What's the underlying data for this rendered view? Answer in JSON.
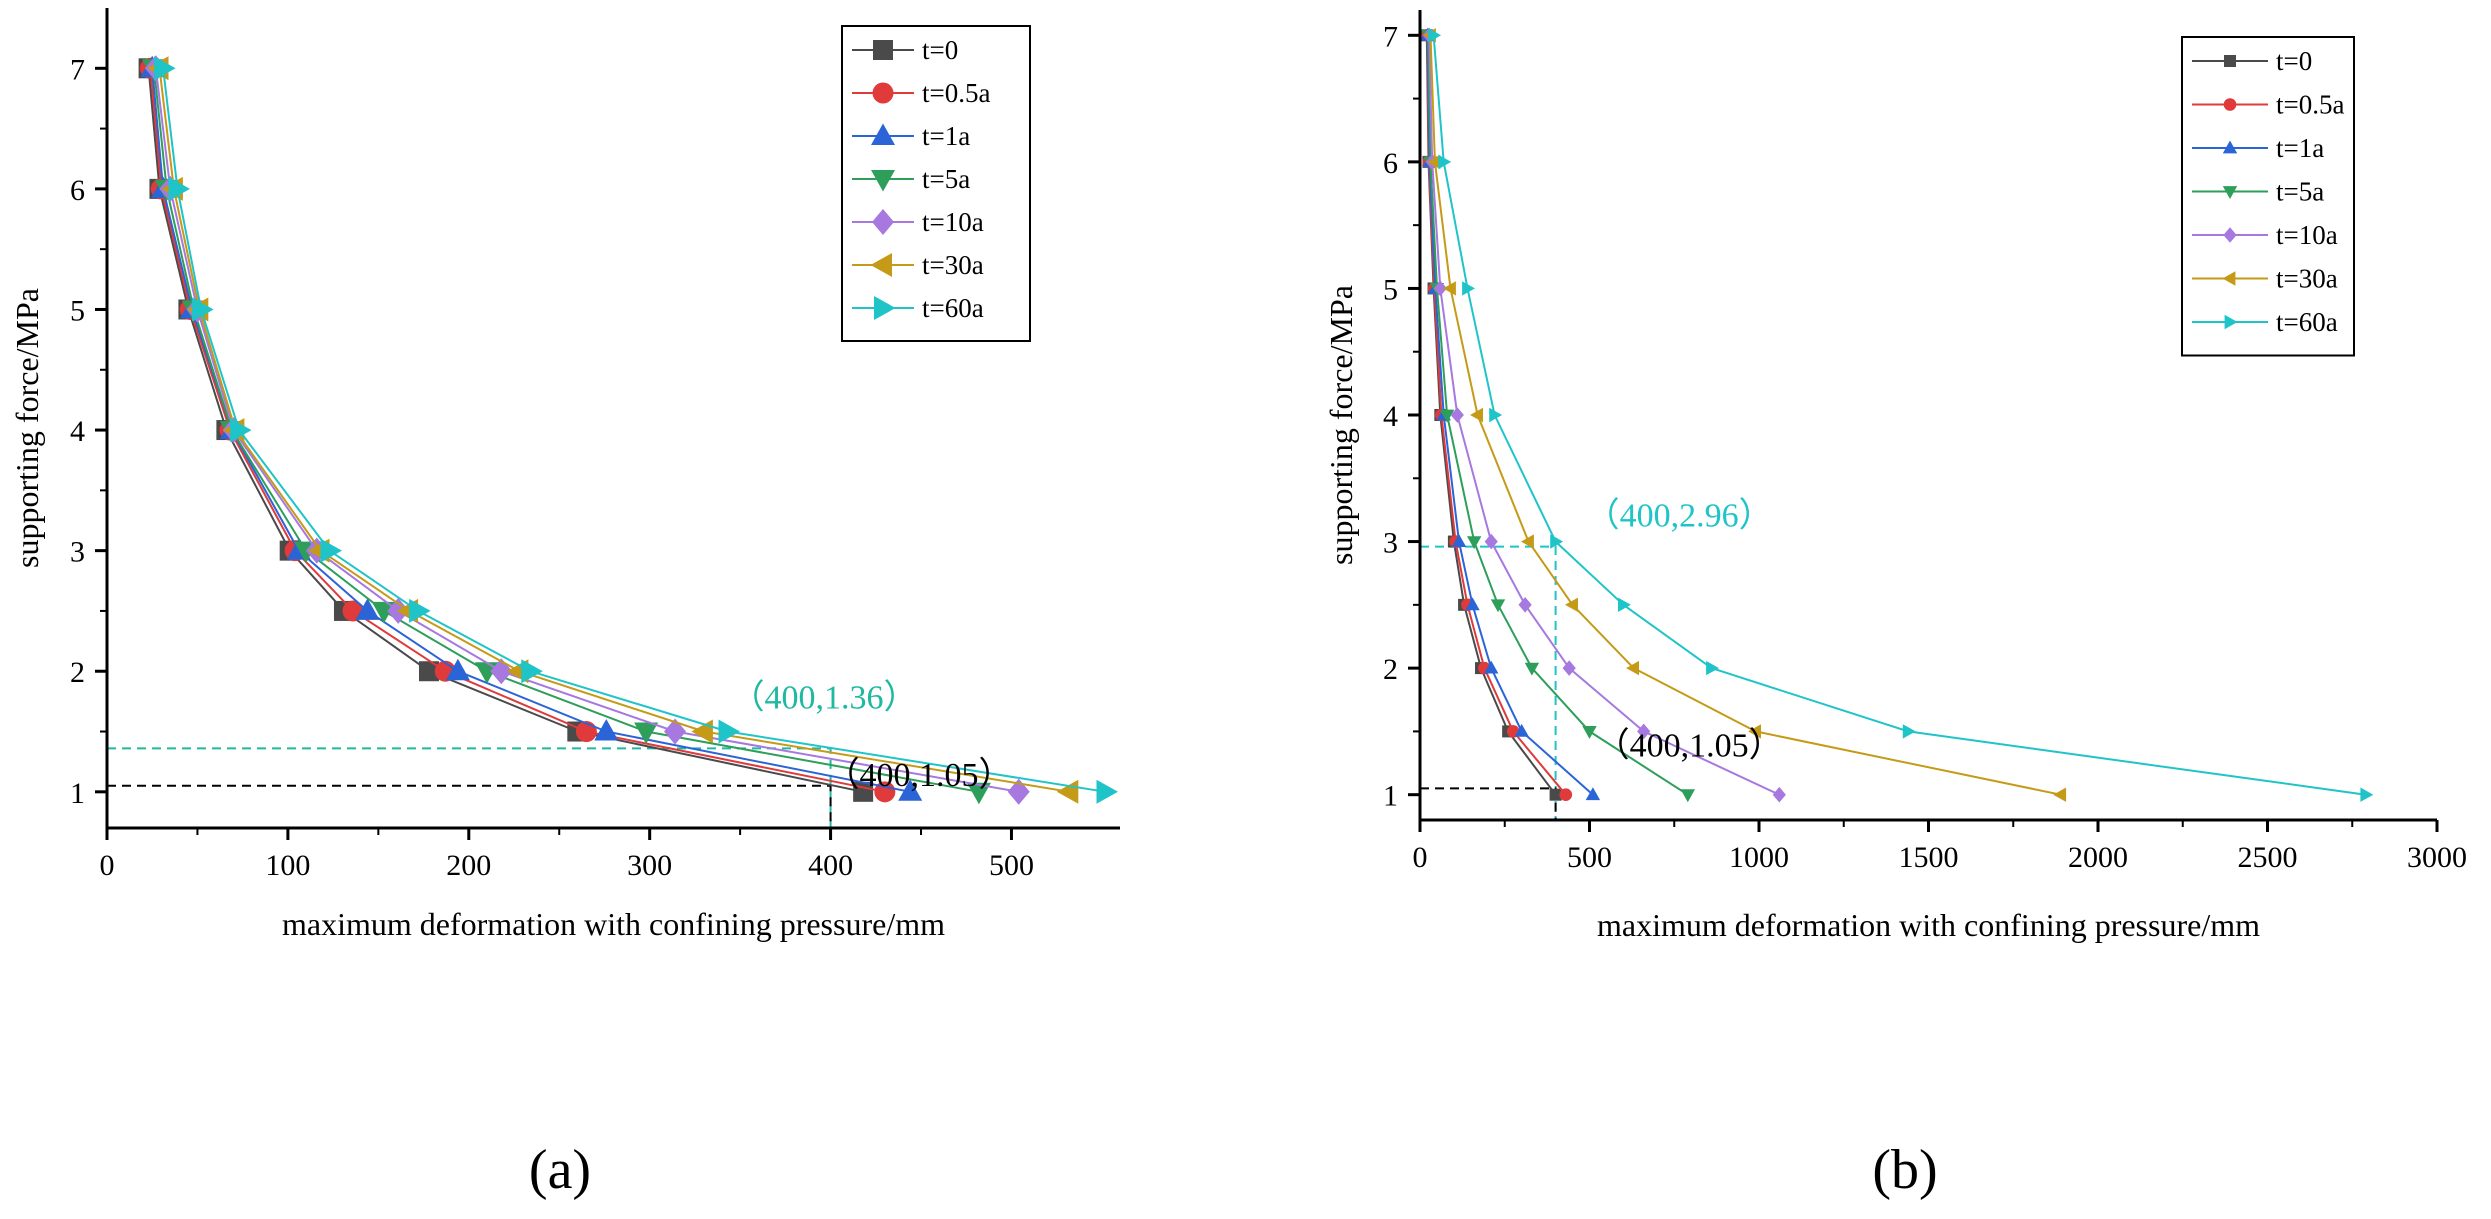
{
  "figure": {
    "panel_labels": [
      "(a)",
      "(b)"
    ]
  },
  "chart_data": [
    {
      "panel": "(a)",
      "type": "line",
      "title": "",
      "xlabel": "maximum deformation with confining pressure/mm",
      "ylabel": "supporting force/MPa",
      "xlim": [
        0,
        560
      ],
      "ylim": [
        0.7,
        7.5
      ],
      "xticks": [
        0,
        100,
        200,
        300,
        400,
        500
      ],
      "yticks": [
        1,
        2,
        3,
        4,
        5,
        6,
        7
      ],
      "grid": false,
      "legend_position": "top-right",
      "series": [
        {
          "name": "t=0",
          "color": "#4a4a4a",
          "marker": "square",
          "x": [
            23,
            29,
            45,
            66,
            101,
            131,
            178,
            260,
            418
          ],
          "y": [
            7,
            6,
            5,
            4,
            3,
            2.5,
            2,
            1.5,
            1
          ]
        },
        {
          "name": "t=0.5a",
          "color": "#e03a3a",
          "marker": "circle",
          "x": [
            24,
            30,
            46,
            68,
            104,
            136,
            187,
            265,
            430
          ],
          "y": [
            7,
            6,
            5,
            4,
            3,
            2.5,
            2,
            1.5,
            1
          ]
        },
        {
          "name": "t=1a",
          "color": "#2a64d6",
          "marker": "triangle-up",
          "x": [
            25,
            31,
            47,
            69,
            106,
            144,
            194,
            276,
            444
          ],
          "y": [
            7,
            6,
            5,
            4,
            3,
            2.5,
            2,
            1.5,
            1
          ]
        },
        {
          "name": "t=5a",
          "color": "#2e9e5b",
          "marker": "triangle-down",
          "x": [
            26,
            33,
            48,
            69,
            110,
            153,
            210,
            298,
            482
          ],
          "y": [
            7,
            6,
            5,
            4,
            3,
            2.5,
            2,
            1.5,
            1
          ]
        },
        {
          "name": "t=10a",
          "color": "#a678e0",
          "marker": "diamond",
          "x": [
            27,
            35,
            50,
            70,
            116,
            161,
            218,
            314,
            504
          ],
          "y": [
            7,
            6,
            5,
            4,
            3,
            2.5,
            2,
            1.5,
            1
          ]
        },
        {
          "name": "t=30a",
          "color": "#c49a16",
          "marker": "triangle-left",
          "x": [
            29,
            37,
            51,
            71,
            118,
            167,
            228,
            330,
            532
          ],
          "y": [
            7,
            6,
            5,
            4,
            3,
            2.5,
            2,
            1.5,
            1
          ]
        },
        {
          "name": "t=60a",
          "color": "#1fc4c9",
          "marker": "triangle-right",
          "x": [
            31,
            39,
            52,
            73,
            123,
            172,
            234,
            343,
            552
          ],
          "y": [
            7,
            6,
            5,
            4,
            3,
            2.5,
            2,
            1.5,
            1
          ]
        }
      ],
      "reference_lines": [
        {
          "x": 400,
          "y": 1.36,
          "color": "#1fb8a0"
        },
        {
          "x": 400,
          "y": 1.05,
          "color": "#000000"
        }
      ],
      "annotations": [
        {
          "text": "（400,1.36）",
          "x": 400,
          "y": 1.36,
          "color": "#1fb8a0"
        },
        {
          "text": "（400,1.05）",
          "x": 400,
          "y": 1.05,
          "color": "#000000"
        }
      ]
    },
    {
      "panel": "(b)",
      "type": "line",
      "title": "",
      "xlabel": "maximum deformation with confining pressure/mm",
      "ylabel": "supporting force/MPa",
      "xlim": [
        0,
        3000
      ],
      "ylim": [
        0.8,
        7.2
      ],
      "xticks": [
        0,
        500,
        1000,
        1500,
        2000,
        2500,
        3000
      ],
      "yticks": [
        1,
        1.5,
        2,
        2.5,
        3,
        3.5,
        4,
        4.5,
        5,
        5.5,
        6,
        6.5,
        7
      ],
      "ytick_labels": [
        "1",
        "",
        "2",
        "",
        "3",
        "",
        "4",
        "",
        "5",
        "",
        "6",
        "",
        "7"
      ],
      "grid": false,
      "legend_position": "top-right",
      "series": [
        {
          "name": "t=0",
          "color": "#4a4a4a",
          "marker": "square",
          "x": [
            20,
            25,
            40,
            60,
            100,
            130,
            180,
            260,
            400
          ],
          "y": [
            7,
            6,
            5,
            4,
            3,
            2.5,
            2,
            1.5,
            1
          ]
        },
        {
          "name": "t=0.5a",
          "color": "#e03a3a",
          "marker": "circle",
          "x": [
            21,
            26,
            42,
            63,
            105,
            140,
            190,
            275,
            430
          ],
          "y": [
            7,
            6,
            5,
            4,
            3,
            2.5,
            2,
            1.5,
            1
          ]
        },
        {
          "name": "t=1a",
          "color": "#2a64d6",
          "marker": "triangle-up",
          "x": [
            22,
            28,
            45,
            70,
            115,
            155,
            210,
            300,
            510
          ],
          "y": [
            7,
            6,
            5,
            4,
            3,
            2.5,
            2,
            1.5,
            1
          ]
        },
        {
          "name": "t=5a",
          "color": "#2e9e5b",
          "marker": "triangle-down",
          "x": [
            24,
            31,
            50,
            80,
            160,
            230,
            330,
            500,
            790
          ],
          "y": [
            7,
            6,
            5,
            4,
            3,
            2.5,
            2,
            1.5,
            1
          ]
        },
        {
          "name": "t=10a",
          "color": "#a678e0",
          "marker": "diamond",
          "x": [
            27,
            36,
            60,
            110,
            210,
            310,
            440,
            660,
            1060
          ],
          "y": [
            7,
            6,
            5,
            4,
            3,
            2.5,
            2,
            1.5,
            1
          ]
        },
        {
          "name": "t=30a",
          "color": "#c49a16",
          "marker": "triangle-left",
          "x": [
            31,
            44,
            90,
            170,
            320,
            450,
            630,
            990,
            1890
          ],
          "y": [
            7,
            6,
            5,
            4,
            3,
            2.5,
            2,
            1.5,
            1
          ]
        },
        {
          "name": "t=60a",
          "color": "#1fc4c9",
          "marker": "triangle-right",
          "x": [
            40,
            70,
            140,
            220,
            400,
            600,
            860,
            1440,
            2790
          ],
          "y": [
            7,
            6,
            5,
            4,
            3,
            2.5,
            2,
            1.5,
            1
          ]
        }
      ],
      "reference_lines": [
        {
          "x": 400,
          "y": 2.96,
          "color": "#1fc4c9"
        },
        {
          "x": 400,
          "y": 1.05,
          "color": "#000000"
        }
      ],
      "annotations": [
        {
          "text": "（400,2.96）",
          "x": 400,
          "y": 2.96,
          "color": "#1fc4c9"
        },
        {
          "text": "（400,1.05）",
          "x": 400,
          "y": 1.05,
          "color": "#000000"
        }
      ]
    }
  ]
}
